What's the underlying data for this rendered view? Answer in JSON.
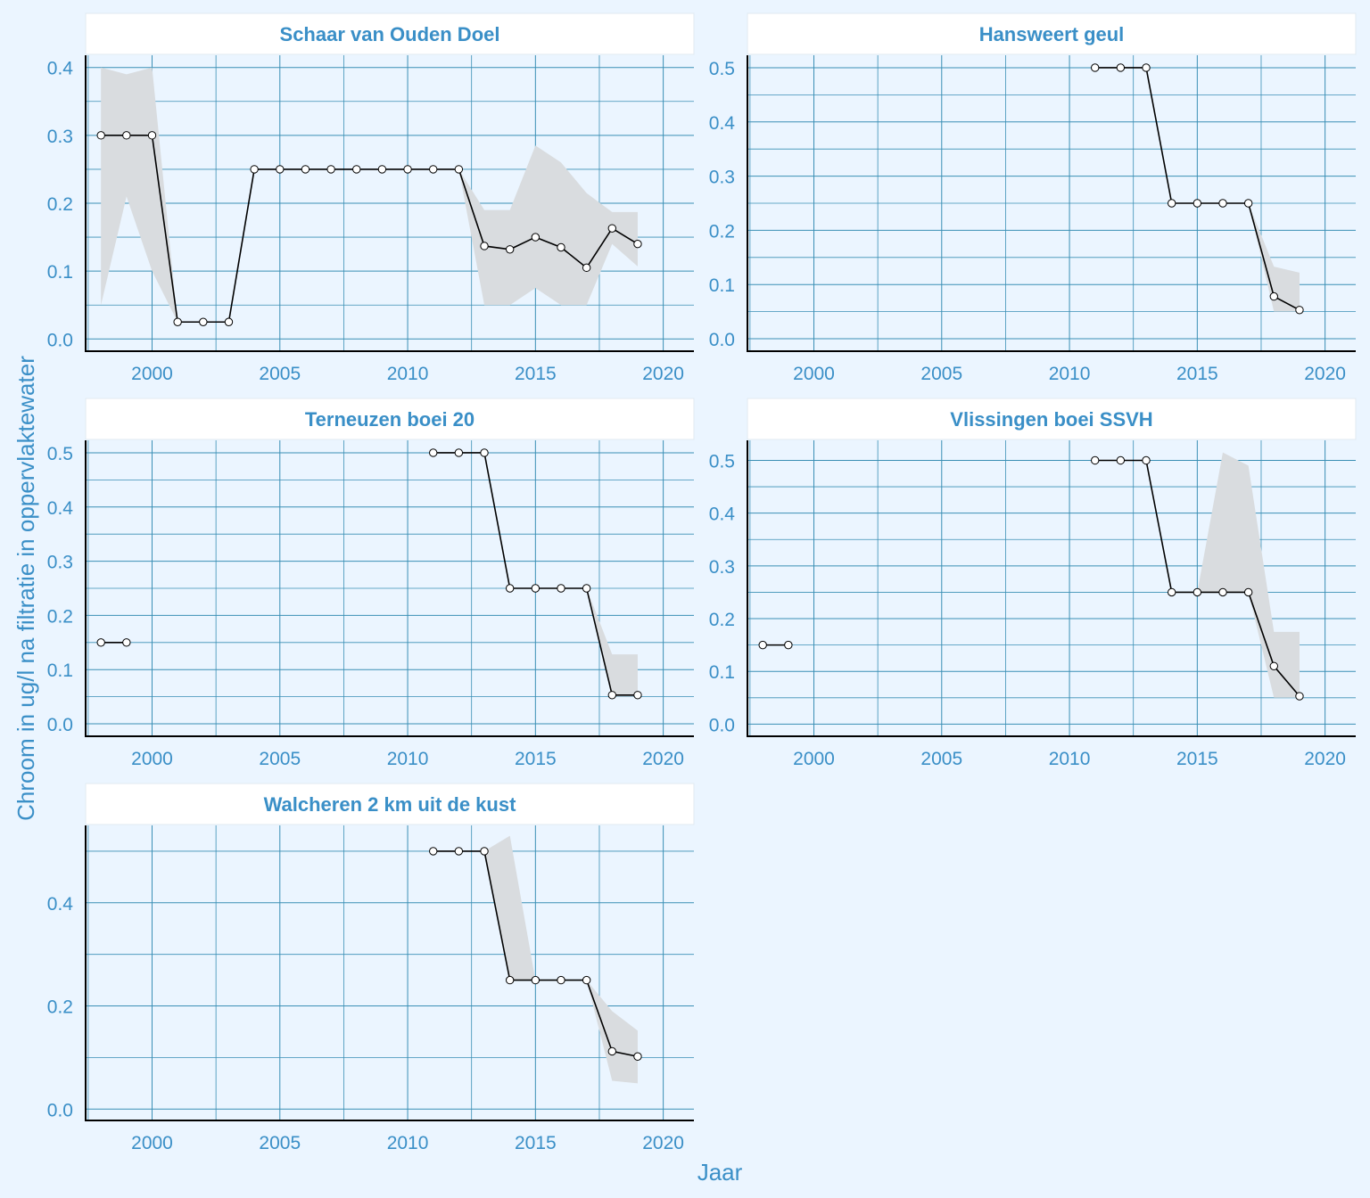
{
  "figure": {
    "xlabel": "Jaar",
    "ylabel": "Chroom in ug/l na filtratie in oppervlaktewater"
  },
  "colors": {
    "background": "#ebf5ff",
    "panel_bg": "#ebf5ff",
    "strip_bg": "#ffffff",
    "grid": "#3a8fb5",
    "text": "#3a8fc7",
    "line": "#000000",
    "ribbon": "#d9dcdf"
  },
  "chart_data": [
    {
      "type": "line",
      "title": "Schaar van Ouden Doel",
      "xlim": [
        1997.4,
        2021.2
      ],
      "ylim": [
        -0.018,
        0.418
      ],
      "xticks": [
        2000,
        2005,
        2010,
        2015,
        2020
      ],
      "yticks": [
        0.0,
        0.1,
        0.2,
        0.3,
        0.4
      ],
      "ytick_labels": [
        "0.0",
        "0.1",
        "0.2",
        "0.3",
        "0.4"
      ],
      "points": [
        [
          1998,
          0.3
        ],
        [
          1999,
          0.3
        ],
        [
          2000,
          0.3
        ],
        [
          2001,
          0.025
        ],
        [
          2002,
          0.025
        ],
        [
          2003,
          0.025
        ],
        [
          2004,
          0.25
        ],
        [
          2005,
          0.25
        ],
        [
          2006,
          0.25
        ],
        [
          2007,
          0.25
        ],
        [
          2008,
          0.25
        ],
        [
          2009,
          0.25
        ],
        [
          2010,
          0.25
        ],
        [
          2011,
          0.25
        ],
        [
          2012,
          0.25
        ],
        [
          2013,
          0.137
        ],
        [
          2014,
          0.132
        ],
        [
          2015,
          0.15
        ],
        [
          2016,
          0.135
        ],
        [
          2017,
          0.105
        ],
        [
          2018,
          0.163
        ],
        [
          2019,
          0.14
        ]
      ],
      "ribbon": [
        [
          1998,
          0.05,
          0.4
        ],
        [
          1999,
          0.21,
          0.39
        ],
        [
          2000,
          0.1,
          0.4
        ],
        [
          2001,
          0.025,
          0.025
        ],
        [
          2002,
          0.025,
          0.025
        ],
        [
          2003,
          0.025,
          0.025
        ],
        [
          2004,
          0.25,
          0.25
        ],
        [
          2005,
          0.25,
          0.25
        ],
        [
          2006,
          0.25,
          0.25
        ],
        [
          2007,
          0.25,
          0.25
        ],
        [
          2008,
          0.25,
          0.25
        ],
        [
          2009,
          0.25,
          0.25
        ],
        [
          2010,
          0.25,
          0.25
        ],
        [
          2011,
          0.25,
          0.25
        ],
        [
          2012,
          0.25,
          0.25
        ],
        [
          2013,
          0.05,
          0.19
        ],
        [
          2014,
          0.05,
          0.19
        ],
        [
          2015,
          0.075,
          0.285
        ],
        [
          2016,
          0.05,
          0.26
        ],
        [
          2017,
          0.05,
          0.215
        ],
        [
          2018,
          0.14,
          0.187
        ],
        [
          2019,
          0.107,
          0.187
        ]
      ]
    },
    {
      "type": "line",
      "title": "Hansweert geul",
      "xlim": [
        1997.4,
        2021.2
      ],
      "ylim": [
        -0.023,
        0.523
      ],
      "xticks": [
        2000,
        2005,
        2010,
        2015,
        2020
      ],
      "yticks": [
        0.0,
        0.1,
        0.2,
        0.3,
        0.4,
        0.5
      ],
      "ytick_labels": [
        "0.0",
        "0.1",
        "0.2",
        "0.3",
        "0.4",
        "0.5"
      ],
      "points": [
        [
          2011,
          0.5
        ],
        [
          2012,
          0.5
        ],
        [
          2013,
          0.5
        ],
        [
          2014,
          0.25
        ],
        [
          2015,
          0.25
        ],
        [
          2016,
          0.25
        ],
        [
          2017,
          0.25
        ],
        [
          2018,
          0.078
        ],
        [
          2019,
          0.053
        ]
      ],
      "ribbon": [
        [
          2011,
          0.5,
          0.5
        ],
        [
          2012,
          0.5,
          0.5
        ],
        [
          2013,
          0.5,
          0.5
        ],
        [
          2014,
          0.25,
          0.25
        ],
        [
          2015,
          0.25,
          0.25
        ],
        [
          2016,
          0.25,
          0.25
        ],
        [
          2017,
          0.25,
          0.25
        ],
        [
          2018,
          0.05,
          0.133
        ],
        [
          2019,
          0.05,
          0.122
        ]
      ]
    },
    {
      "type": "line",
      "title": "Terneuzen boei 20",
      "xlim": [
        1997.4,
        2021.2
      ],
      "ylim": [
        -0.023,
        0.523
      ],
      "xticks": [
        2000,
        2005,
        2010,
        2015,
        2020
      ],
      "yticks": [
        0.0,
        0.1,
        0.2,
        0.3,
        0.4,
        0.5
      ],
      "ytick_labels": [
        "0.0",
        "0.1",
        "0.2",
        "0.3",
        "0.4",
        "0.5"
      ],
      "points": [
        [
          1998,
          0.15
        ],
        [
          1999,
          0.15
        ],
        [
          null,
          null
        ],
        [
          2011,
          0.5
        ],
        [
          2012,
          0.5
        ],
        [
          2013,
          0.5
        ],
        [
          2014,
          0.25
        ],
        [
          2015,
          0.25
        ],
        [
          2016,
          0.25
        ],
        [
          2017,
          0.25
        ],
        [
          2018,
          0.053
        ],
        [
          2019,
          0.053
        ]
      ],
      "ribbon": [
        [
          2011,
          0.5,
          0.5
        ],
        [
          2012,
          0.5,
          0.5
        ],
        [
          2013,
          0.5,
          0.5
        ],
        [
          2014,
          0.25,
          0.25
        ],
        [
          2015,
          0.25,
          0.25
        ],
        [
          2016,
          0.25,
          0.25
        ],
        [
          2017,
          0.25,
          0.25
        ],
        [
          2018,
          0.05,
          0.128
        ],
        [
          2019,
          0.05,
          0.128
        ]
      ]
    },
    {
      "type": "line",
      "title": "Vlissingen boei SSVH",
      "xlim": [
        1997.4,
        2021.2
      ],
      "ylim": [
        -0.023,
        0.538
      ],
      "xticks": [
        2000,
        2005,
        2010,
        2015,
        2020
      ],
      "yticks": [
        0.0,
        0.1,
        0.2,
        0.3,
        0.4,
        0.5
      ],
      "ytick_labels": [
        "0.0",
        "0.1",
        "0.2",
        "0.3",
        "0.4",
        "0.5"
      ],
      "points": [
        [
          1998,
          0.15
        ],
        [
          1999,
          0.15
        ],
        [
          null,
          null
        ],
        [
          2011,
          0.5
        ],
        [
          2012,
          0.5
        ],
        [
          2013,
          0.5
        ],
        [
          2014,
          0.25
        ],
        [
          2015,
          0.25
        ],
        [
          2016,
          0.25
        ],
        [
          2017,
          0.25
        ],
        [
          2018,
          0.11
        ],
        [
          2019,
          0.053
        ]
      ],
      "ribbon": [
        [
          2011,
          0.5,
          0.5
        ],
        [
          2012,
          0.5,
          0.5
        ],
        [
          2013,
          0.5,
          0.5
        ],
        [
          2014,
          0.25,
          0.25
        ],
        [
          2015,
          0.25,
          0.25
        ],
        [
          2016,
          0.25,
          0.515
        ],
        [
          2017,
          0.25,
          0.49
        ],
        [
          2018,
          0.05,
          0.175
        ],
        [
          2019,
          0.05,
          0.175
        ]
      ]
    },
    {
      "type": "line",
      "title": "Walcheren 2 km uit de kust",
      "xlim": [
        1997.4,
        2021.2
      ],
      "ylim": [
        -0.022,
        0.55
      ],
      "xticks": [
        2000,
        2005,
        2010,
        2015,
        2020
      ],
      "yticks": [
        0.0,
        0.2,
        0.4
      ],
      "ytick_labels": [
        "0.0",
        "0.2",
        "0.4"
      ],
      "minor_yticks": [
        0.1,
        0.3,
        0.5
      ],
      "points": [
        [
          2011,
          0.5
        ],
        [
          2012,
          0.5
        ],
        [
          2013,
          0.5
        ],
        [
          2014,
          0.25
        ],
        [
          2015,
          0.25
        ],
        [
          2016,
          0.25
        ],
        [
          2017,
          0.25
        ],
        [
          2018,
          0.112
        ],
        [
          2019,
          0.102
        ]
      ],
      "ribbon": [
        [
          2011,
          0.5,
          0.5
        ],
        [
          2012,
          0.5,
          0.5
        ],
        [
          2013,
          0.5,
          0.5
        ],
        [
          2014,
          0.25,
          0.53
        ],
        [
          2015,
          0.25,
          0.25
        ],
        [
          2016,
          0.25,
          0.25
        ],
        [
          2017,
          0.25,
          0.25
        ],
        [
          2018,
          0.055,
          0.19
        ],
        [
          2019,
          0.05,
          0.152
        ]
      ]
    }
  ]
}
